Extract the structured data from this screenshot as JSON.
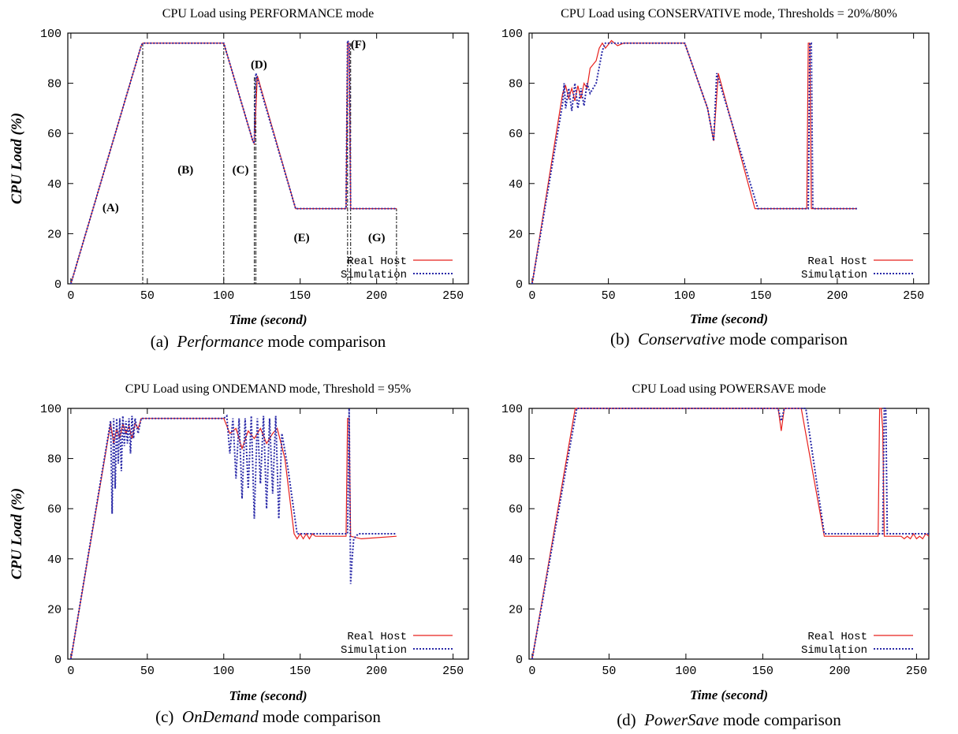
{
  "colors": {
    "real": "#e8201c",
    "sim": "#2a2aa8"
  },
  "chart_data": [
    {
      "type": "line",
      "title": "CPU Load using PERFORMANCE mode",
      "xlabel": "Time (second)",
      "ylabel": "CPU Load (%)",
      "caption_label": "(a)",
      "caption_em": "Performance",
      "caption_rest": " mode comparison",
      "xlim": [
        -2,
        260
      ],
      "ylim": [
        0,
        100
      ],
      "xticks": [
        0,
        50,
        100,
        150,
        200,
        250
      ],
      "yticks": [
        0,
        20,
        40,
        60,
        80,
        100
      ],
      "grid": false,
      "legend": "bottom-right",
      "series": [
        {
          "name": "Real Host",
          "style": "solid",
          "x": [
            0,
            46,
            47,
            100,
            119,
            120,
            122,
            147,
            180,
            181,
            182,
            183,
            213
          ],
          "y": [
            0,
            95,
            96,
            96,
            57,
            56,
            83,
            30,
            30,
            96,
            96,
            30,
            30
          ]
        },
        {
          "name": "Simulation",
          "style": "dotted",
          "x": [
            0,
            46,
            47,
            100,
            119,
            120,
            121,
            147,
            180,
            181,
            182,
            183,
            213
          ],
          "y": [
            0,
            95,
            96,
            96,
            57,
            56,
            84,
            30,
            30,
            97,
            96,
            30,
            30
          ]
        }
      ],
      "vlines": [
        {
          "x": 47,
          "y": 96
        },
        {
          "x": 100,
          "y": 96
        },
        {
          "x": 120,
          "y": 83
        },
        {
          "x": 121,
          "y": 83
        },
        {
          "x": 181,
          "y": 96
        },
        {
          "x": 183,
          "y": 96
        },
        {
          "x": 213,
          "y": 30
        }
      ],
      "annotations": [
        {
          "text": "(A)",
          "x": 26,
          "y": 29
        },
        {
          "text": "(B)",
          "x": 75,
          "y": 44
        },
        {
          "text": "(C)",
          "x": 111,
          "y": 44
        },
        {
          "text": "(D)",
          "x": 123,
          "y": 86
        },
        {
          "text": "(E)",
          "x": 151,
          "y": 17
        },
        {
          "text": "(F)",
          "x": 188,
          "y": 94
        },
        {
          "text": "(G)",
          "x": 200,
          "y": 17
        }
      ]
    },
    {
      "type": "line",
      "title": "CPU Load using CONSERVATIVE mode, Thresholds = 20%/80%",
      "xlabel": "Time (second)",
      "ylabel": "",
      "caption_label": "(b)",
      "caption_em": "Conservative",
      "caption_rest": " mode comparison",
      "xlim": [
        -2,
        260
      ],
      "ylim": [
        0,
        100
      ],
      "xticks": [
        0,
        50,
        100,
        150,
        200,
        250
      ],
      "yticks": [
        0,
        20,
        40,
        60,
        80,
        100
      ],
      "grid": false,
      "legend": "bottom-right",
      "series": [
        {
          "name": "Real Host",
          "style": "solid",
          "x": [
            0,
            20,
            22,
            24,
            26,
            28,
            30,
            32,
            34,
            36,
            38,
            42,
            44,
            46,
            48,
            52,
            56,
            60,
            100,
            115,
            119,
            122,
            146,
            180,
            181,
            182,
            183,
            213
          ],
          "y": [
            0,
            76,
            79,
            74,
            78,
            73,
            79,
            74,
            80,
            78,
            86,
            89,
            94,
            96,
            94,
            97,
            95,
            96,
            96,
            70,
            57,
            84,
            30,
            30,
            96,
            96,
            30,
            30
          ]
        },
        {
          "name": "Simulation",
          "style": "dotted",
          "x": [
            0,
            20,
            21,
            22,
            24,
            26,
            28,
            30,
            32,
            34,
            36,
            38,
            42,
            46,
            48,
            100,
            115,
            119,
            121,
            148,
            181,
            182,
            183,
            184,
            213
          ],
          "y": [
            0,
            72,
            80,
            70,
            78,
            69,
            80,
            70,
            78,
            71,
            80,
            76,
            80,
            93,
            96,
            96,
            70,
            57,
            84,
            30,
            30,
            96,
            96,
            30,
            30
          ]
        }
      ]
    },
    {
      "type": "line",
      "title": "CPU Load using ONDEMAND mode, Threshold = 95%",
      "xlabel": "Time (second)",
      "ylabel": "CPU Load (%)",
      "caption_label": "(c)",
      "caption_em": "OnDemand",
      "caption_rest": " mode comparison",
      "xlim": [
        -2,
        260
      ],
      "ylim": [
        0,
        100
      ],
      "xticks": [
        0,
        50,
        100,
        150,
        200,
        250
      ],
      "yticks": [
        0,
        20,
        40,
        60,
        80,
        100
      ],
      "grid": false,
      "legend": "bottom-right",
      "series": [
        {
          "name": "Real Host",
          "style": "solid",
          "x": [
            0,
            26,
            28,
            30,
            32,
            34,
            36,
            38,
            40,
            42,
            44,
            46,
            50,
            100,
            104,
            108,
            112,
            116,
            120,
            124,
            128,
            132,
            135,
            140,
            146,
            148,
            150,
            152,
            154,
            156,
            158,
            160,
            180,
            181,
            182,
            183,
            190,
            213
          ],
          "y": [
            0,
            94,
            86,
            92,
            88,
            94,
            90,
            93,
            88,
            94,
            92,
            96,
            96,
            96,
            90,
            92,
            84,
            91,
            88,
            92,
            86,
            90,
            92,
            80,
            50,
            48,
            50,
            48,
            50,
            48,
            50,
            49,
            49,
            96,
            96,
            49,
            48,
            49
          ]
        },
        {
          "name": "Simulation",
          "style": "dotted",
          "x": [
            0,
            26,
            27,
            28,
            29,
            30,
            31,
            32,
            33,
            34,
            35,
            36,
            37,
            38,
            39,
            40,
            41,
            42,
            44,
            46,
            50,
            100,
            102,
            104,
            106,
            108,
            110,
            112,
            114,
            116,
            118,
            120,
            122,
            124,
            126,
            128,
            130,
            132,
            134,
            136,
            138,
            142,
            148,
            181,
            182,
            183,
            184,
            185,
            188,
            213
          ],
          "y": [
            0,
            95,
            58,
            96,
            68,
            96,
            78,
            96,
            75,
            97,
            85,
            95,
            86,
            96,
            82,
            97,
            88,
            96,
            90,
            96,
            96,
            96,
            97,
            82,
            96,
            72,
            96,
            64,
            96,
            68,
            97,
            56,
            96,
            70,
            97,
            60,
            96,
            66,
            97,
            56,
            90,
            76,
            50,
            50,
            100,
            30,
            40,
            48,
            50,
            50
          ]
        }
      ]
    },
    {
      "type": "line",
      "title": "CPU Load using POWERSAVE mode",
      "xlabel": "Time (second)",
      "ylabel": "",
      "caption_label": "(d)",
      "caption_em": "PowerSave",
      "caption_rest": " mode comparison",
      "xlim": [
        -2,
        258
      ],
      "ylim": [
        0,
        100
      ],
      "xticks": [
        0,
        50,
        100,
        150,
        200,
        250
      ],
      "yticks": [
        0,
        20,
        40,
        60,
        80,
        100
      ],
      "grid": false,
      "legend": "bottom-right",
      "series": [
        {
          "name": "Real Host",
          "style": "solid",
          "x": [
            0,
            28,
            160,
            162,
            164,
            175,
            190,
            225,
            226,
            227,
            228,
            229,
            240,
            242,
            244,
            246,
            248,
            250,
            252,
            254,
            256,
            258
          ],
          "y": [
            0,
            100,
            100,
            91,
            100,
            100,
            49,
            49,
            100,
            100,
            92,
            49,
            49,
            48,
            49,
            48,
            50,
            48,
            49,
            48,
            50,
            49
          ]
        },
        {
          "name": "Simulation",
          "style": "dotted",
          "x": [
            0,
            29,
            160,
            162,
            164,
            178,
            190,
            228,
            229,
            230,
            231,
            258
          ],
          "y": [
            0,
            100,
            100,
            95,
            100,
            100,
            50,
            50,
            100,
            100,
            50,
            50
          ]
        }
      ]
    }
  ]
}
